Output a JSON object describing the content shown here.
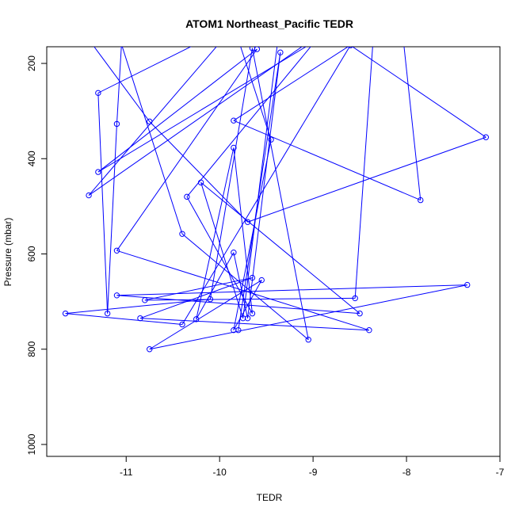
{
  "chart_data": {
    "type": "line",
    "title": "ATOM1 Northeast_Pacific TEDR",
    "xlabel": "TEDR",
    "ylabel": "Pressure (mbar)",
    "xlim": [
      -11.85,
      -7.0
    ],
    "ylim": [
      1025,
      165
    ],
    "y_reversed": true,
    "x_ticks": [
      -11,
      -10,
      -9,
      -8,
      -7
    ],
    "y_ticks": [
      200,
      400,
      600,
      800,
      1000
    ],
    "grid": false,
    "color": "#0000ff",
    "series": [
      {
        "points": [
          [
            -11.55,
            110
          ],
          [
            -10.75,
            322
          ],
          [
            -9.7,
            533
          ],
          [
            -7.15,
            355
          ],
          [
            -8.6,
            162
          ],
          [
            -10.4,
            748
          ],
          [
            -11.65,
            725
          ],
          [
            -10.1,
            695
          ],
          [
            -9.65,
            168
          ],
          [
            -9.05,
            780
          ],
          [
            -10.4,
            558
          ],
          [
            -11.05,
            160
          ],
          [
            -11.1,
            327
          ],
          [
            -11.2,
            725
          ],
          [
            -11.3,
            262
          ],
          [
            -9.85,
            120
          ],
          [
            -9.45,
            360
          ],
          [
            -9.85,
            760
          ],
          [
            -9.55,
            655
          ],
          [
            -10.75,
            800
          ],
          [
            -7.35,
            665
          ],
          [
            -11.1,
            687
          ],
          [
            -8.5,
            725
          ],
          [
            -10.2,
            450
          ],
          [
            -9.75,
            735
          ],
          [
            -9.35,
            110
          ],
          [
            -8.95,
            150
          ],
          [
            -11.3,
            428
          ],
          [
            -9.6,
            170
          ],
          [
            -11.1,
            593
          ],
          [
            -8.4,
            760
          ],
          [
            -10.85,
            735
          ],
          [
            -9.65,
            650
          ],
          [
            -10.8,
            697
          ],
          [
            -8.55,
            693
          ],
          [
            -8.35,
            130
          ],
          [
            -9.85,
            320
          ],
          [
            -7.85,
            487
          ],
          [
            -8.1,
            30
          ],
          [
            -9.4,
            20
          ],
          [
            -11.4,
            477
          ],
          [
            -8.9,
            135
          ],
          [
            -10.35,
            480
          ],
          [
            -9.65,
            725
          ],
          [
            -9.85,
            377
          ],
          [
            -10.25,
            737
          ],
          [
            -9.85,
            597
          ],
          [
            -9.7,
            735
          ],
          [
            -9.35,
            177
          ],
          [
            -9.8,
            760
          ]
        ]
      }
    ]
  }
}
